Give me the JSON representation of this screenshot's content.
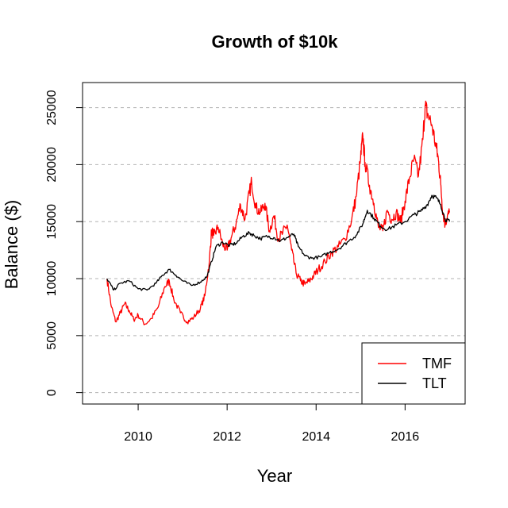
{
  "chart_data": {
    "type": "line",
    "title": "Growth of $10k",
    "xlabel": "Year",
    "ylabel": "Balance ($)",
    "xlim": [
      2008.75,
      2017.35
    ],
    "ylim": [
      -1000,
      27200
    ],
    "x_ticks": [
      2010,
      2012,
      2014,
      2016
    ],
    "x_tick_labels": [
      "2010",
      "2012",
      "2014",
      "2016"
    ],
    "y_ticks": [
      0,
      5000,
      10000,
      15000,
      20000,
      25000
    ],
    "y_tick_labels": [
      "0",
      "5000",
      "10000",
      "15000",
      "20000",
      "25000"
    ],
    "grid": "horizontal dashed",
    "legend_position": "bottom-right",
    "series": [
      {
        "name": "TMF",
        "color": "#ff0000",
        "x": [
          2009.3,
          2009.4,
          2009.5,
          2009.6,
          2009.7,
          2009.8,
          2009.9,
          2010.0,
          2010.15,
          2010.3,
          2010.45,
          2010.6,
          2010.7,
          2010.8,
          2010.95,
          2011.1,
          2011.25,
          2011.4,
          2011.5,
          2011.6,
          2011.65,
          2011.7,
          2011.8,
          2011.9,
          2012.0,
          2012.1,
          2012.2,
          2012.3,
          2012.4,
          2012.5,
          2012.55,
          2012.65,
          2012.75,
          2012.85,
          2012.95,
          2013.05,
          2013.15,
          2013.25,
          2013.35,
          2013.45,
          2013.55,
          2013.65,
          2013.75,
          2013.85,
          2013.95,
          2014.05,
          2014.2,
          2014.35,
          2014.5,
          2014.65,
          2014.8,
          2014.9,
          2015.0,
          2015.05,
          2015.1,
          2015.2,
          2015.3,
          2015.4,
          2015.5,
          2015.6,
          2015.7,
          2015.8,
          2015.9,
          2016.0,
          2016.1,
          2016.2,
          2016.3,
          2016.4,
          2016.45,
          2016.5,
          2016.6,
          2016.7,
          2016.75,
          2016.8,
          2016.85,
          2016.9,
          2016.95,
          2017.0
        ],
        "values": [
          10000,
          7500,
          6200,
          7000,
          7800,
          7200,
          6400,
          6800,
          6000,
          6500,
          7500,
          9300,
          9800,
          8200,
          7000,
          6200,
          6600,
          7400,
          8500,
          11500,
          14200,
          13800,
          14500,
          13000,
          12500,
          13700,
          14800,
          16500,
          15200,
          17500,
          18500,
          16200,
          15800,
          16600,
          14200,
          15500,
          13500,
          14000,
          14700,
          12500,
          10500,
          9800,
          9500,
          9800,
          10300,
          10800,
          11500,
          12300,
          12800,
          13500,
          15200,
          17200,
          20500,
          22500,
          20200,
          18200,
          16600,
          14500,
          14200,
          16000,
          15200,
          15800,
          15000,
          16800,
          18800,
          20500,
          19000,
          22200,
          25200,
          24500,
          23500,
          21500,
          20400,
          18300,
          15800,
          14800,
          15500,
          15800
        ]
      },
      {
        "name": "TLT",
        "color": "#000000",
        "x": [
          2009.3,
          2009.45,
          2009.6,
          2009.8,
          2010.0,
          2010.2,
          2010.4,
          2010.55,
          2010.7,
          2010.85,
          2011.0,
          2011.2,
          2011.4,
          2011.55,
          2011.65,
          2011.75,
          2011.9,
          2012.05,
          2012.2,
          2012.35,
          2012.5,
          2012.6,
          2012.75,
          2012.9,
          2013.05,
          2013.2,
          2013.35,
          2013.5,
          2013.6,
          2013.75,
          2013.9,
          2014.1,
          2014.3,
          2014.5,
          2014.7,
          2014.9,
          2015.05,
          2015.15,
          2015.3,
          2015.45,
          2015.6,
          2015.8,
          2016.0,
          2016.2,
          2016.35,
          2016.5,
          2016.6,
          2016.7,
          2016.8,
          2016.9,
          2017.0
        ],
        "values": [
          10000,
          9000,
          9600,
          9800,
          9100,
          9000,
          9600,
          10300,
          10800,
          10300,
          9800,
          9400,
          9700,
          10200,
          11500,
          12800,
          13200,
          12900,
          13100,
          13700,
          14000,
          13800,
          13500,
          13700,
          13600,
          13300,
          13600,
          13900,
          12800,
          12000,
          11800,
          11900,
          12300,
          12600,
          13200,
          13800,
          14800,
          16000,
          15300,
          14600,
          14300,
          14700,
          15000,
          15600,
          15900,
          16500,
          17300,
          17100,
          16500,
          15200,
          15000
        ]
      }
    ]
  }
}
